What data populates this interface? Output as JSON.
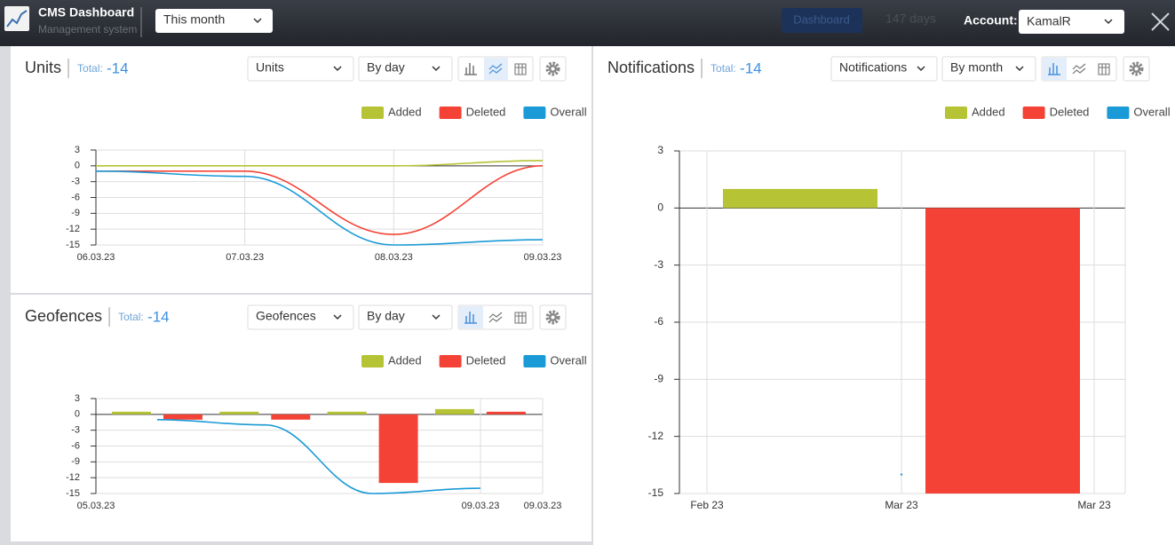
{
  "header": {
    "title": "CMS Dashboard",
    "subtitle": "Management system",
    "period": "This month",
    "tab": "Dashboard",
    "days": "147 days",
    "account_label": "Account:",
    "account": "KamalR"
  },
  "chart_data": [
    {
      "type": "line",
      "title": "Units",
      "total_label": "Total:",
      "total": -14,
      "selectors": [
        "Units",
        "By day"
      ],
      "categories": [
        "06.03.23",
        "07.03.23",
        "08.03.23",
        "09.03.23"
      ],
      "series": [
        {
          "name": "Added",
          "color": "#b5c334",
          "values": [
            0,
            0,
            0,
            1
          ]
        },
        {
          "name": "Deleted",
          "color": "#f44336",
          "values": [
            -1,
            -1,
            -13,
            0
          ]
        },
        {
          "name": "Overall",
          "color": "#1a9ad6",
          "values": [
            -1,
            -2,
            -15,
            -14
          ]
        }
      ],
      "ylim": [
        -15,
        3
      ],
      "yticks": [
        3,
        0,
        -3,
        -6,
        -9,
        -12,
        -15
      ],
      "grid": true,
      "legend": "top-right"
    },
    {
      "type": "bar",
      "title": "Geofences",
      "total_label": "Total:",
      "total": -14,
      "selectors": [
        "Geofences",
        "By day"
      ],
      "categories": [
        null,
        null,
        null,
        null
      ],
      "x_labels": [
        "05.03.23",
        "09.03.23",
        "09.03.23"
      ],
      "series": [
        {
          "name": "Added",
          "color": "#b5c334",
          "values": [
            0.5,
            0.5,
            0.5,
            1
          ]
        },
        {
          "name": "Deleted",
          "color": "#f44336",
          "values": [
            -1,
            -1,
            -13,
            0.5
          ]
        },
        {
          "name": "Overall",
          "color": "#1a9ad6",
          "type": "line",
          "values": [
            -1,
            -2,
            -15,
            -14
          ]
        }
      ],
      "ylim": [
        -15,
        3
      ],
      "yticks": [
        3,
        0,
        -3,
        -6,
        -9,
        -12,
        -15
      ],
      "grid": true,
      "legend": "top-right"
    },
    {
      "type": "bar",
      "title": "Notifications",
      "total_label": "Total:",
      "total": -14,
      "selectors": [
        "Notifications",
        "By month"
      ],
      "categories": [
        null
      ],
      "x_labels": [
        "Feb 23",
        "Mar 23",
        "Mar 23"
      ],
      "series": [
        {
          "name": "Added",
          "color": "#b5c334",
          "values": [
            1
          ]
        },
        {
          "name": "Deleted",
          "color": "#f44336",
          "values": [
            -15
          ]
        },
        {
          "name": "Overall",
          "color": "#1a9ad6",
          "type": "line",
          "values": [
            -14
          ]
        }
      ],
      "ylim": [
        -15,
        3
      ],
      "yticks": [
        3,
        0,
        -3,
        -6,
        -9,
        -12,
        -15
      ],
      "grid": true,
      "legend": "top-right"
    }
  ]
}
